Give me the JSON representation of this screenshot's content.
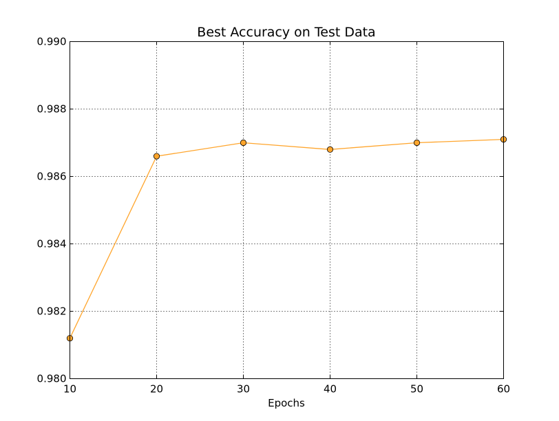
{
  "chart_data": {
    "type": "line",
    "title": "Best Accuracy on Test Data",
    "xlabel": "Epochs",
    "ylabel": "",
    "xlim": [
      10,
      60
    ],
    "ylim": [
      0.98,
      0.99
    ],
    "x_ticks": [
      "10",
      "20",
      "30",
      "40",
      "50",
      "60"
    ],
    "y_ticks": [
      "0.980",
      "0.982",
      "0.984",
      "0.986",
      "0.988",
      "0.990"
    ],
    "grid": true,
    "series": [
      {
        "x": [
          10,
          20,
          30,
          40,
          50,
          60
        ],
        "y": [
          0.9812,
          0.9866,
          0.987,
          0.9868,
          0.987,
          0.9871
        ],
        "color": "#ffa52c"
      }
    ]
  }
}
